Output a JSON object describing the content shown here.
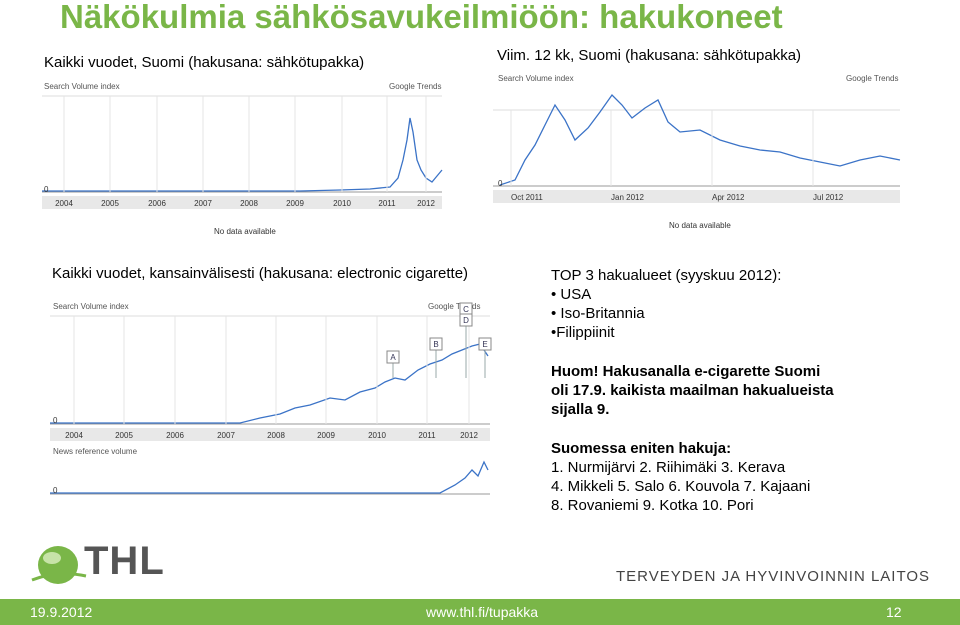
{
  "title": "Näkökulmia sähkösavukeilmiöön: hakukoneet",
  "panels": [
    {
      "caption": "Kaikki vuodet, Suomi (hakusana: sähkötupakka)",
      "chart": {
        "header_left": "Search Volume index",
        "header_right": "Google Trends",
        "zero": "0",
        "axis_labels": [
          "2004",
          "2005",
          "2006",
          "2007",
          "2008",
          "2009",
          "2010",
          "2011",
          "2012"
        ],
        "note": "No data available"
      }
    },
    {
      "caption": "Viim. 12 kk, Suomi (hakusana: sähkötupakka)",
      "chart": {
        "header_left": "Search Volume index",
        "header_right": "Google Trends",
        "zero": "0",
        "axis_labels": [
          "Oct 2011",
          "Jan 2012",
          "Apr 2012",
          "Jul 2012"
        ],
        "note": "No data available"
      }
    },
    {
      "caption": "Kaikki vuodet, kansainvälisesti (hakusana: electronic cigarette)",
      "chart": {
        "header_left": "Search Volume index",
        "header_right": "Google Trends",
        "zero": "0",
        "axis_labels": [
          "2004",
          "2005",
          "2006",
          "2007",
          "2008",
          "2009",
          "2010",
          "2011",
          "2012"
        ],
        "markers": [
          "A",
          "B",
          "C",
          "D",
          "E"
        ],
        "news_label": "News reference volume",
        "news_zero": "0"
      }
    }
  ],
  "info": {
    "top_heading": "TOP 3 hakualueet (syyskuu 2012):",
    "top_items": [
      "• USA",
      "• Iso-Britannia",
      "•Filippiinit"
    ],
    "note_lines": [
      "Huom! Hakusanalla e-cigarette Suomi",
      "oli 17.9. kaikista maailman hakualueista",
      "sijalla 9."
    ],
    "cities_heading": "Suomessa eniten hakuja:",
    "cities_lines": [
      "1. Nurmijärvi 2. Riihimäki 3. Kerava",
      "4. Mikkeli 5. Salo 6. Kouvola 7. Kajaani",
      "8. Rovaniemi 9. Kotka 10. Pori"
    ]
  },
  "logo": {
    "text": "THL",
    "tagline": "TERVEYDEN JA HYVINVOINNIN LAITOS"
  },
  "footer": {
    "date": "19.9.2012",
    "url": "www.thl.fi/tupakka",
    "page": "12"
  }
}
